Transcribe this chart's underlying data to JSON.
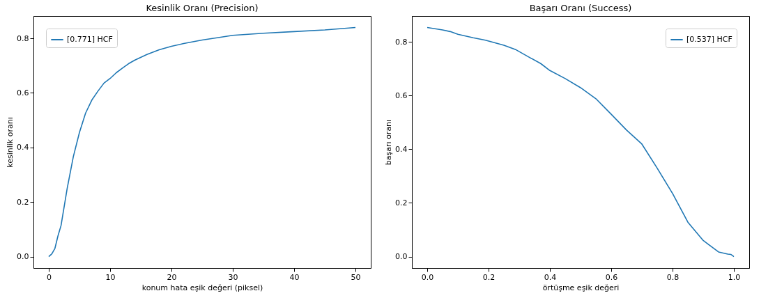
{
  "chart_data": [
    {
      "type": "line",
      "title": "Kesinlik Oranı (Precision)",
      "xlabel": "konum hata eşik değeri (piksel)",
      "ylabel": "kesinlik oranı",
      "legend": "top left",
      "xlim": [
        -2.5,
        52.5
      ],
      "ylim": [
        -0.042,
        0.882
      ],
      "xticks": [
        0,
        10,
        20,
        30,
        40,
        50
      ],
      "yticks": [
        {
          "value": 0,
          "label": "0.0"
        },
        {
          "value": 0.2,
          "label": "0.2"
        },
        {
          "value": 0.4,
          "label": "0.4"
        },
        {
          "value": 0.6,
          "label": "0.6"
        },
        {
          "value": 0.8,
          "label": "0.8"
        }
      ],
      "series": [
        {
          "name": "[0.771] HCF",
          "color": "#1f77b4",
          "x": [
            0,
            0.5,
            1,
            1.5,
            2,
            3,
            4,
            5,
            6,
            7,
            8,
            9,
            10,
            11,
            12,
            13,
            14,
            16,
            18,
            20,
            22,
            25,
            28,
            30,
            35,
            40,
            45,
            50
          ],
          "values": [
            0,
            0.01,
            0.03,
            0.076,
            0.114,
            0.25,
            0.366,
            0.455,
            0.526,
            0.573,
            0.606,
            0.636,
            0.653,
            0.674,
            0.691,
            0.707,
            0.72,
            0.741,
            0.758,
            0.771,
            0.781,
            0.794,
            0.804,
            0.811,
            0.819,
            0.825,
            0.831,
            0.84
          ]
        }
      ]
    },
    {
      "type": "line",
      "title": "Başarı Oranı (Success)",
      "xlabel": "örtüşme eşik değeri",
      "ylabel": "başarı oranı",
      "legend": "top right",
      "xlim": [
        -0.05,
        1.05
      ],
      "ylim": [
        -0.0427,
        0.896
      ],
      "xticks": [
        {
          "value": 0,
          "label": "0.0"
        },
        {
          "value": 0.2,
          "label": "0.2"
        },
        {
          "value": 0.4,
          "label": "0.4"
        },
        {
          "value": 0.6,
          "label": "0.6"
        },
        {
          "value": 0.8,
          "label": "0.8"
        },
        {
          "value": 1,
          "label": "1.0"
        }
      ],
      "yticks": [
        {
          "value": 0,
          "label": "0.0"
        },
        {
          "value": 0.2,
          "label": "0.2"
        },
        {
          "value": 0.4,
          "label": "0.4"
        },
        {
          "value": 0.6,
          "label": "0.6"
        },
        {
          "value": 0.8,
          "label": "0.8"
        }
      ],
      "series": [
        {
          "name": "[0.537] HCF",
          "color": "#1f77b4",
          "x": [
            0,
            0.05,
            0.075,
            0.1,
            0.15,
            0.19,
            0.25,
            0.29,
            0.33,
            0.37,
            0.4,
            0.45,
            0.5,
            0.55,
            0.6,
            0.65,
            0.7,
            0.75,
            0.8,
            0.85,
            0.9,
            0.95,
            0.98,
            0.99,
            1.0
          ],
          "values": [
            0.853,
            0.844,
            0.838,
            0.828,
            0.815,
            0.806,
            0.787,
            0.77,
            0.744,
            0.719,
            0.693,
            0.663,
            0.629,
            0.588,
            0.53,
            0.471,
            0.419,
            0.329,
            0.235,
            0.128,
            0.06,
            0.017,
            0.009,
            0.008,
            0
          ]
        }
      ]
    }
  ]
}
